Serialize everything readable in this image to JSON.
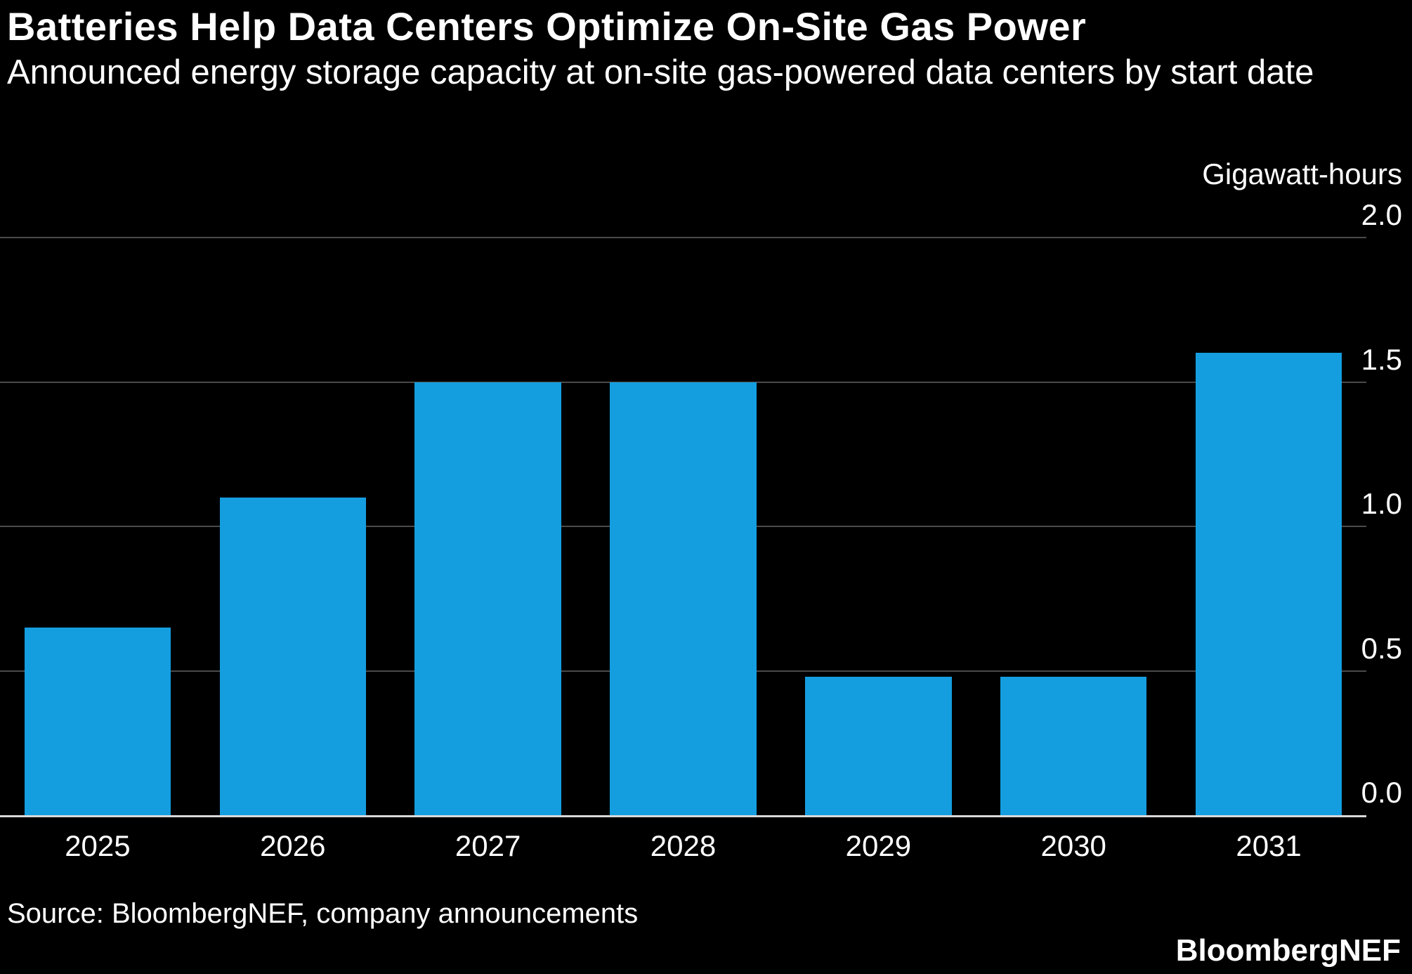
{
  "header": {
    "title": "Batteries Help Data Centers Optimize On-Site Gas Power",
    "subtitle": "Announced energy storage capacity at on-site gas-powered data centers by start date"
  },
  "footer": {
    "source": "Source: BloombergNEF, company announcements",
    "brand": "BloombergNEF"
  },
  "chart_data": {
    "type": "bar",
    "title": "Batteries Help Data Centers Optimize On-Site Gas Power",
    "subtitle": "Announced energy storage capacity at on-site gas-powered data centers by start date",
    "unit_label": "Gigawatt-hours",
    "categories": [
      "2025",
      "2026",
      "2027",
      "2028",
      "2029",
      "2030",
      "2031"
    ],
    "values": [
      0.65,
      1.1,
      1.5,
      1.5,
      0.48,
      0.48,
      1.6
    ],
    "ylabel": "Gigawatt-hours",
    "xlabel": "",
    "ylim": [
      0,
      2.0
    ],
    "yticks": [
      0.0,
      0.5,
      1.0,
      1.5,
      2.0
    ],
    "ytick_labels": [
      "0.0",
      "0.5",
      "1.0",
      "1.5",
      "2.0"
    ],
    "ytick_side": "right",
    "grid": true,
    "legend": false,
    "colors": {
      "bar": "#149EE0",
      "background": "#000000",
      "grid": "#4a4a4a",
      "axis": "#d9d9d9",
      "text": "#ffffff"
    }
  }
}
